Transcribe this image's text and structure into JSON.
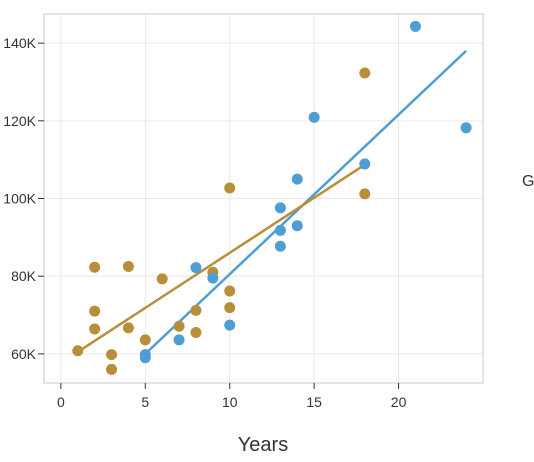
{
  "chart_data": {
    "type": "scatter",
    "xlabel": "Years",
    "ylabel": "",
    "xlim": [
      -1,
      25
    ],
    "ylim": [
      52500,
      147500
    ],
    "x_ticks": [
      0,
      5,
      10,
      15,
      20
    ],
    "y_ticks": [
      60000,
      80000,
      100000,
      120000,
      140000
    ],
    "y_tick_labels": [
      "60K",
      "80K",
      "100K",
      "120K",
      "140K"
    ],
    "grid": true,
    "legend_visible_text": "G",
    "series": [
      {
        "color": "#4d9ed3",
        "points": [
          {
            "x": 5,
            "y": 59000
          },
          {
            "x": 5,
            "y": 59800
          },
          {
            "x": 7,
            "y": 63600
          },
          {
            "x": 8,
            "y": 82200
          },
          {
            "x": 9,
            "y": 79500
          },
          {
            "x": 10,
            "y": 67400
          },
          {
            "x": 13,
            "y": 97600
          },
          {
            "x": 13,
            "y": 91800
          },
          {
            "x": 13,
            "y": 87700
          },
          {
            "x": 14,
            "y": 105000
          },
          {
            "x": 14,
            "y": 93000
          },
          {
            "x": 15,
            "y": 120900
          },
          {
            "x": 18,
            "y": 108900
          },
          {
            "x": 21,
            "y": 144300
          },
          {
            "x": 24,
            "y": 118200
          }
        ],
        "trendline": {
          "x": [
            5,
            24
          ],
          "y": [
            60000,
            138000
          ]
        }
      },
      {
        "color": "#b88f38",
        "points": [
          {
            "x": 1,
            "y": 60800
          },
          {
            "x": 2,
            "y": 82300
          },
          {
            "x": 2,
            "y": 71000
          },
          {
            "x": 2,
            "y": 66400
          },
          {
            "x": 3,
            "y": 59800
          },
          {
            "x": 3,
            "y": 56000
          },
          {
            "x": 4,
            "y": 82500
          },
          {
            "x": 4,
            "y": 66700
          },
          {
            "x": 5,
            "y": 63600
          },
          {
            "x": 6,
            "y": 79300
          },
          {
            "x": 7,
            "y": 67100
          },
          {
            "x": 8,
            "y": 71200
          },
          {
            "x": 8,
            "y": 65500
          },
          {
            "x": 9,
            "y": 81000
          },
          {
            "x": 10,
            "y": 102700
          },
          {
            "x": 10,
            "y": 76200
          },
          {
            "x": 10,
            "y": 71900
          },
          {
            "x": 18,
            "y": 132300
          },
          {
            "x": 18,
            "y": 101200
          }
        ],
        "trendline": {
          "x": [
            1,
            18
          ],
          "y": [
            60500,
            108700
          ]
        }
      }
    ]
  }
}
